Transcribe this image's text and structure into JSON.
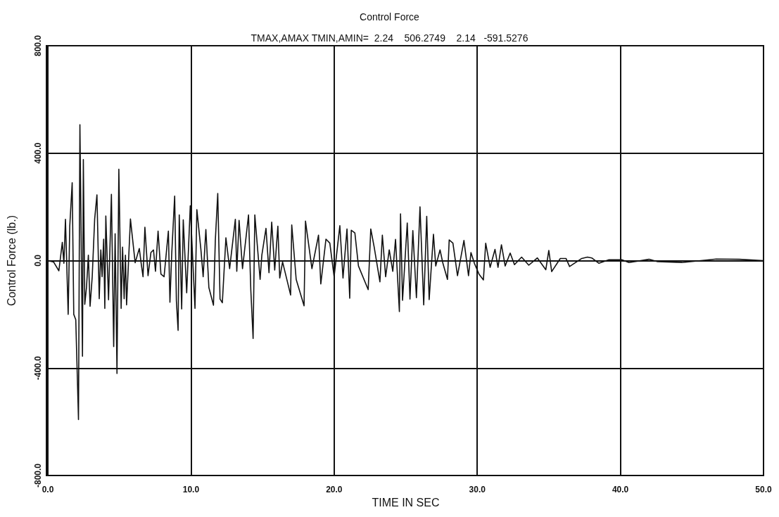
{
  "chart_data": {
    "type": "line",
    "title": "Control Force",
    "subtitle": "TMAX,AMAX TMIN,AMIN=  2.24    506.2749    2.14   -591.5276",
    "xlabel": "TIME IN SEC",
    "ylabel": "Control Force (lb.)",
    "x": [
      0,
      0.4,
      0.77,
      1.01,
      1.12,
      1.23,
      1.42,
      1.53,
      1.7,
      1.81,
      1.95,
      2.14,
      2.24,
      2.42,
      2.48,
      2.58,
      2.7,
      2.83,
      2.95,
      3.1,
      3.27,
      3.43,
      3.59,
      3.7,
      3.79,
      3.9,
      3.98,
      4.05,
      4.24,
      4.44,
      4.6,
      4.7,
      4.83,
      4.96,
      5.12,
      5.22,
      5.33,
      5.42,
      5.5,
      5.77,
      5.9,
      6.1,
      6.25,
      6.39,
      6.52,
      6.65,
      6.78,
      7.0,
      7.2,
      7.38,
      7.52,
      7.7,
      7.9,
      8.12,
      8.42,
      8.53,
      8.65,
      8.86,
      8.98,
      9.1,
      9.18,
      9.35,
      9.46,
      9.7,
      9.95,
      10.28,
      10.41,
      10.69,
      10.85,
      11.04,
      11.25,
      11.57,
      11.7,
      11.87,
      12.03,
      12.19,
      12.44,
      12.7,
      13.1,
      13.2,
      13.36,
      13.6,
      14.02,
      14.18,
      14.34,
      14.46,
      14.83,
      14.95,
      15.24,
      15.45,
      15.64,
      15.85,
      16.07,
      16.2,
      16.4,
      16.96,
      17.04,
      17.35,
      17.9,
      18.0,
      18.45,
      18.91,
      19.07,
      19.43,
      19.7,
      20.0,
      20.4,
      20.62,
      20.9,
      21.09,
      21.2,
      21.45,
      21.7,
      22.38,
      22.56,
      22.8,
      23.2,
      23.37,
      23.6,
      23.85,
      24.1,
      24.29,
      24.56,
      24.64,
      24.78,
      25.11,
      25.3,
      25.5,
      25.75,
      26.0,
      26.26,
      26.47,
      26.64,
      26.94,
      27.1,
      27.4,
      27.6,
      27.92,
      28.04,
      28.3,
      28.62,
      29.07,
      29.39,
      29.56,
      29.8,
      30.13,
      30.43,
      30.59,
      30.9,
      31.24,
      31.45,
      31.69,
      31.95,
      32.3,
      32.6,
      33.1,
      33.6,
      34.2,
      34.79,
      35.0,
      35.2,
      35.8,
      36.2,
      36.45,
      37.3,
      37.7,
      38.0,
      38.5,
      39.2,
      40.1,
      40.6,
      42.0,
      42.6,
      44.3,
      46.7,
      48.3,
      50
    ],
    "series": [
      {
        "color": "#111111",
        "values": [
          0,
          -5,
          -38,
          68,
          -10,
          154,
          -200,
          127,
          290,
          -200,
          -220,
          -592,
          506,
          -356,
          376,
          -163,
          -100,
          20,
          -170,
          -60,
          154,
          245,
          -142,
          40,
          -60,
          80,
          -178,
          166,
          -146,
          247,
          -320,
          100,
          -420,
          340,
          -178,
          50,
          -142,
          20,
          -165,
          155,
          90,
          -8,
          20,
          45,
          -10,
          -60,
          124,
          -56,
          30,
          40,
          -40,
          110,
          -50,
          -60,
          110,
          -155,
          20,
          240,
          -150,
          -260,
          170,
          -180,
          152,
          -120,
          204,
          -178,
          190,
          43,
          -60,
          116,
          -100,
          -166,
          75,
          250,
          -143,
          -157,
          85,
          -30,
          154,
          -40,
          150,
          -30,
          170,
          -110,
          -290,
          170,
          -70,
          20,
          120,
          -45,
          143,
          -35,
          128,
          -65,
          -5,
          -128,
          133,
          -70,
          -168,
          147,
          -30,
          95,
          -87,
          80,
          65,
          -60,
          130,
          -65,
          118,
          -140,
          113,
          103,
          -20,
          -108,
          118,
          50,
          -79,
          95,
          -60,
          40,
          -40,
          79,
          -190,
          174,
          -148,
          140,
          -143,
          112,
          -138,
          200,
          -165,
          165,
          -145,
          98,
          -20,
          40,
          -10,
          -70,
          77,
          65,
          -56,
          75,
          -56,
          30,
          -10,
          -51,
          -72,
          65,
          -25,
          42,
          -25,
          59,
          -20,
          28,
          -15,
          13,
          -17,
          10,
          -34,
          38,
          -41,
          8,
          8,
          -22,
          8,
          13,
          10,
          -10,
          3,
          3,
          -7,
          5,
          -4,
          -7,
          6,
          5,
          0
        ]
      }
    ],
    "xlim": [
      0,
      50
    ],
    "xticks": [
      {
        "value": 0,
        "label": "0.0"
      },
      {
        "value": 10,
        "label": "10.0"
      },
      {
        "value": 20,
        "label": "20.0"
      },
      {
        "value": 30,
        "label": "30.0"
      },
      {
        "value": 40,
        "label": "40.0"
      },
      {
        "value": 50,
        "label": "50.0"
      }
    ],
    "ylim": [
      -800,
      800
    ],
    "yticks": [
      {
        "value": -800,
        "label": "-800.0"
      },
      {
        "value": -400,
        "label": "-400.0"
      },
      {
        "value": 0,
        "label": "0.0"
      },
      {
        "value": 400,
        "label": "400.0"
      },
      {
        "value": 800,
        "label": "800.0"
      }
    ],
    "grid": true,
    "marker": "none",
    "line_style": "solid"
  }
}
